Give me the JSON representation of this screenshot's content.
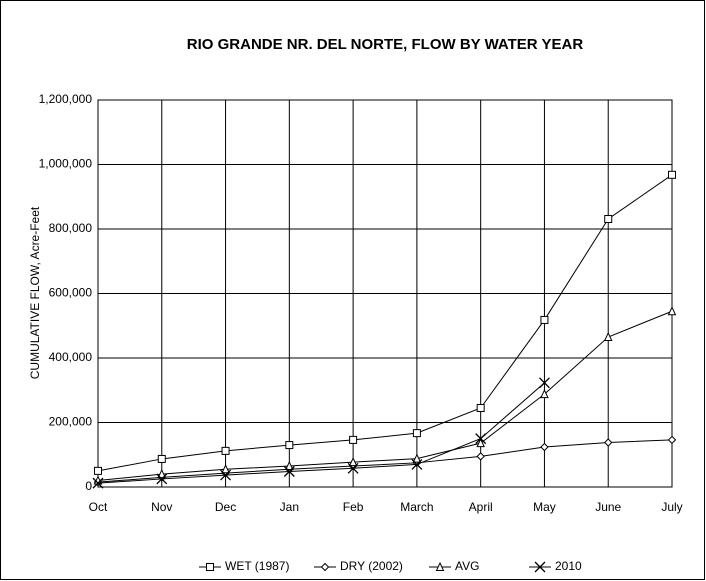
{
  "chart_data": {
    "type": "line",
    "title": "RIO GRANDE NR. DEL NORTE, FLOW BY WATER YEAR",
    "y_label": "CUMULATIVE FLOW, Acre-Feet",
    "categories": [
      "Oct",
      "Nov",
      "Dec",
      "Jan",
      "Feb",
      "March",
      "April",
      "May",
      "June",
      "July"
    ],
    "series": [
      {
        "name": "WET (1987)",
        "color": "#000000",
        "marker": "square",
        "values": [
          50000,
          87000,
          112000,
          130000,
          146000,
          167000,
          245000,
          518000,
          831000,
          968000
        ]
      },
      {
        "name": "DRY (2002)",
        "color": "#000000",
        "marker": "diamond",
        "values": [
          15000,
          30000,
          43000,
          55000,
          65000,
          75000,
          95000,
          124000,
          138000,
          146000
        ]
      },
      {
        "name": "AVG",
        "color": "#000000",
        "marker": "triangle",
        "values": [
          20000,
          40000,
          55000,
          65000,
          77000,
          88000,
          136000,
          288000,
          465000,
          545000
        ]
      },
      {
        "name": "2010",
        "color": "#000000",
        "marker": "x",
        "values": [
          12000,
          25000,
          37000,
          48000,
          58000,
          70000,
          150000,
          323000,
          null,
          null
        ]
      }
    ],
    "ylim": [
      0,
      1200000
    ],
    "yticks": [
      0,
      {
        "value": 200000,
        "label": "200,000"
      },
      {
        "value": 400000,
        "label": "400,000"
      },
      {
        "value": 600000,
        "label": "600,000"
      },
      {
        "value": 800000,
        "label": "800,000"
      },
      {
        "value": 1000000,
        "label": "1,000,000"
      },
      {
        "value": 1200000,
        "label": "1,200,000"
      }
    ],
    "grid": true,
    "legend": "bottom"
  }
}
